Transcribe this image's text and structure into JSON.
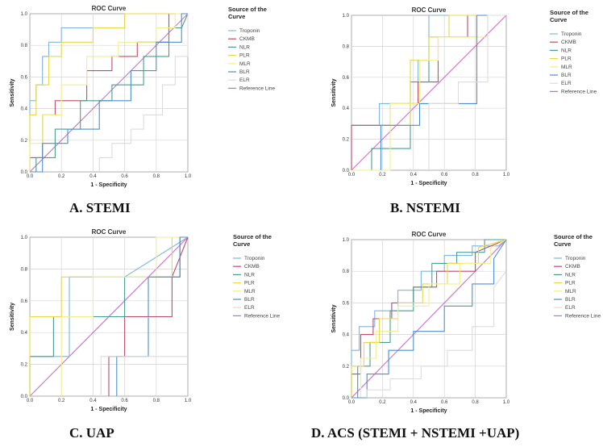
{
  "legend_title_lines": [
    "Source of the",
    "Curve"
  ],
  "chart_data": [
    {
      "type": "line",
      "id": "A",
      "title": "ROC Curve",
      "xlabel": "1 - Specificity",
      "ylabel": "Sensitivity",
      "xlim": [
        0,
        1
      ],
      "ylim": [
        0,
        1
      ],
      "ticks": [
        "0.0",
        "0.2",
        "0.4",
        "0.6",
        "0.8",
        "1.0"
      ],
      "caption": "A. STEMI",
      "series": [
        {
          "name": "Troponin",
          "color": "#7eb6e0",
          "x": [
            0,
            0,
            0.04,
            0.04,
            0.08,
            0.08,
            0.12,
            0.12,
            0.2,
            0.2,
            0.28,
            0.28,
            0.6,
            0.6,
            0.92,
            0.92,
            1
          ],
          "y": [
            0,
            0.45,
            0.45,
            0.55,
            0.55,
            0.73,
            0.73,
            0.82,
            0.82,
            0.91,
            0.91,
            0.91,
            0.91,
            1,
            1,
            1,
            1
          ]
        },
        {
          "name": "CKMB",
          "color": "#c04d66",
          "x": [
            0,
            0,
            0.08,
            0.08,
            0.16,
            0.16,
            0.36,
            0.36,
            0.52,
            0.52,
            0.68,
            0.68,
            0.88,
            0.88,
            1
          ],
          "y": [
            0,
            0.09,
            0.09,
            0.36,
            0.36,
            0.45,
            0.45,
            0.64,
            0.64,
            0.73,
            0.73,
            0.82,
            0.82,
            1,
            1
          ]
        },
        {
          "name": "NLR",
          "color": "#4a9e8e",
          "x": [
            0,
            0.04,
            0.04,
            0.16,
            0.16,
            0.32,
            0.32,
            0.52,
            0.52,
            0.72,
            0.72,
            0.88,
            0.88,
            0.96,
            1
          ],
          "y": [
            0,
            0,
            0.09,
            0.09,
            0.27,
            0.27,
            0.45,
            0.45,
            0.55,
            0.55,
            0.73,
            0.73,
            0.91,
            0.91,
            1
          ]
        },
        {
          "name": "PLR",
          "color": "#e8d84a",
          "x": [
            0,
            0,
            0.04,
            0.04,
            0.12,
            0.12,
            0.2,
            0.2,
            0.4,
            0.4,
            0.6,
            0.6,
            0.92,
            0.92,
            1
          ],
          "y": [
            0,
            0.36,
            0.36,
            0.55,
            0.55,
            0.73,
            0.73,
            0.82,
            0.82,
            0.91,
            0.91,
            1,
            1,
            1,
            1
          ]
        },
        {
          "name": "MLR",
          "color": "#f1ef8a",
          "x": [
            0,
            0,
            0.08,
            0.08,
            0.2,
            0.2,
            0.36,
            0.36,
            0.56,
            0.56,
            0.8,
            0.8,
            0.92,
            0.92,
            1
          ],
          "y": [
            0,
            0.18,
            0.18,
            0.36,
            0.36,
            0.55,
            0.55,
            0.73,
            0.73,
            0.82,
            0.82,
            0.91,
            0.91,
            1,
            1
          ]
        },
        {
          "name": "BLR",
          "color": "#4c8fcf",
          "x": [
            0,
            0.08,
            0.08,
            0.24,
            0.24,
            0.44,
            0.44,
            0.64,
            0.64,
            0.8,
            0.8,
            0.96,
            0.96,
            1
          ],
          "y": [
            0,
            0,
            0.18,
            0.18,
            0.27,
            0.27,
            0.45,
            0.45,
            0.64,
            0.64,
            0.82,
            0.82,
            1,
            1
          ]
        },
        {
          "name": "ELR",
          "color": "#dcdcdc",
          "x": [
            0.44,
            0.44,
            0.52,
            0.52,
            0.64,
            0.64,
            0.72,
            0.72,
            0.84,
            0.84,
            0.92,
            0.92,
            1,
            1
          ],
          "y": [
            0,
            0.09,
            0.09,
            0.18,
            0.18,
            0.27,
            0.27,
            0.36,
            0.36,
            0.55,
            0.55,
            0.73,
            0.73,
            1
          ]
        },
        {
          "name": "Reference Line",
          "color": "#c86ec8",
          "x": [
            0,
            1
          ],
          "y": [
            0,
            1
          ]
        }
      ]
    },
    {
      "type": "line",
      "id": "B",
      "title": "ROC Curve",
      "xlabel": "1 - Specificity",
      "ylabel": "Sensitivity",
      "xlim": [
        0,
        1
      ],
      "ylim": [
        0,
        1
      ],
      "ticks": [
        "0.0",
        "0.2",
        "0.4",
        "0.6",
        "0.8",
        "1.0"
      ],
      "caption": "B. NSTEMI",
      "series": [
        {
          "name": "Troponin",
          "color": "#7eb6e0",
          "x": [
            0,
            0,
            0.18,
            0.18,
            0.43,
            0.43,
            0.5,
            0.5,
            0.75,
            0.75,
            1
          ],
          "y": [
            0,
            0.29,
            0.29,
            0.43,
            0.43,
            0.71,
            0.71,
            1,
            1,
            1,
            1
          ]
        },
        {
          "name": "CKMB",
          "color": "#c04d66",
          "x": [
            0,
            0,
            0.25,
            0.25,
            0.43,
            0.43,
            0.56,
            0.56,
            0.75,
            0.75,
            1
          ],
          "y": [
            0,
            0.29,
            0.29,
            0.43,
            0.43,
            0.57,
            0.57,
            0.86,
            0.86,
            1,
            1
          ]
        },
        {
          "name": "NLR",
          "color": "#4a9e8e",
          "x": [
            0.13,
            0.13,
            0.38,
            0.38,
            0.5,
            0.5,
            0.81,
            0.81,
            1
          ],
          "y": [
            0,
            0.14,
            0.14,
            0.57,
            0.57,
            0.86,
            0.86,
            1,
            1
          ]
        },
        {
          "name": "PLR",
          "color": "#e8d84a",
          "x": [
            0,
            0.19,
            0.19,
            0.38,
            0.38,
            0.5,
            0.5,
            0.63,
            0.63,
            1
          ],
          "y": [
            0,
            0,
            0.29,
            0.29,
            0.71,
            0.71,
            0.86,
            0.86,
            1,
            1
          ]
        },
        {
          "name": "MLR",
          "color": "#f1ef8a",
          "x": [
            0,
            0.25,
            0.25,
            0.44,
            0.44,
            0.56,
            0.56,
            0.88,
            0.88,
            1
          ],
          "y": [
            0,
            0,
            0.43,
            0.43,
            0.71,
            0.71,
            0.86,
            0.86,
            1,
            1
          ]
        },
        {
          "name": "BLR",
          "color": "#4c8fcf",
          "x": [
            0.19,
            0.19,
            0.44,
            0.44,
            0.81,
            0.81,
            1
          ],
          "y": [
            0,
            0.29,
            0.29,
            0.43,
            0.43,
            1,
            1
          ]
        },
        {
          "name": "ELR",
          "color": "#dcdcdc",
          "x": [
            0.5,
            0.5,
            0.69,
            0.69,
            0.88,
            0.88,
            1
          ],
          "y": [
            0,
            0.43,
            0.43,
            0.57,
            0.57,
            1,
            1
          ]
        },
        {
          "name": "Reference Line",
          "color": "#c86ec8",
          "x": [
            0,
            1
          ],
          "y": [
            0,
            1
          ]
        }
      ]
    },
    {
      "type": "line",
      "id": "C",
      "title": "ROC Curve",
      "xlabel": "1 - Specificity",
      "ylabel": "Sensitivity",
      "xlim": [
        0,
        1
      ],
      "ylim": [
        0,
        1
      ],
      "ticks": [
        "0.0",
        "0.2",
        "0.4",
        "0.6",
        "0.8",
        "1.0"
      ],
      "caption": "C. UAP",
      "series": [
        {
          "name": "Troponin",
          "color": "#7eb6e0",
          "x": [
            0,
            0,
            0.25,
            0.25,
            0.6,
            1
          ],
          "y": [
            0,
            0.25,
            0.25,
            0.75,
            0.75,
            1
          ]
        },
        {
          "name": "CKMB",
          "color": "#c04d66",
          "x": [
            0.5,
            0.5,
            0.6,
            0.6,
            0.9,
            0.9,
            1
          ],
          "y": [
            0,
            0.25,
            0.25,
            0.5,
            0.5,
            0.75,
            1
          ]
        },
        {
          "name": "NLR",
          "color": "#4a9e8e",
          "x": [
            0,
            0,
            0.15,
            0.15,
            0.6,
            0.6,
            0.95,
            0.95,
            1
          ],
          "y": [
            0,
            0.25,
            0.25,
            0.5,
            0.5,
            0.75,
            0.75,
            1,
            1
          ]
        },
        {
          "name": "PLR",
          "color": "#e8d84a",
          "x": [
            0,
            0,
            0.05,
            0.05,
            0.2,
            0.2,
            0.9,
            0.9,
            1
          ],
          "y": [
            0,
            0.5,
            0.5,
            0.5,
            0.5,
            0.75,
            0.75,
            1,
            1
          ]
        },
        {
          "name": "MLR",
          "color": "#f1ef8a",
          "x": [
            0.2,
            0.2,
            0.4,
            0.4,
            0.8,
            0.8,
            1
          ],
          "y": [
            0,
            0.5,
            0.5,
            0.75,
            0.75,
            1,
            1
          ]
        },
        {
          "name": "BLR",
          "color": "#4c8fcf",
          "x": [
            0.55,
            0.55,
            0.75,
            0.75,
            0.95,
            0.95,
            1
          ],
          "y": [
            0,
            0.25,
            0.25,
            0.75,
            0.75,
            1,
            1
          ]
        },
        {
          "name": "ELR",
          "color": "#dcdcdc",
          "x": [
            0.45,
            0.45,
            1
          ],
          "y": [
            0,
            0.25,
            0.25
          ]
        },
        {
          "name": "Reference Line",
          "color": "#c86ec8",
          "x": [
            0,
            1
          ],
          "y": [
            0,
            1
          ]
        }
      ]
    },
    {
      "type": "line",
      "id": "D",
      "title": "ROC Curve",
      "xlabel": "1 - Specificity",
      "ylabel": "Sensitivity",
      "xlim": [
        0,
        1
      ],
      "ylim": [
        0,
        1
      ],
      "ticks": [
        "0.0",
        "0.2",
        "0.4",
        "0.6",
        "0.8",
        "1.0"
      ],
      "caption": "D. ACS (STEMI + NSTEMI +UAP)",
      "series": [
        {
          "name": "Troponin",
          "color": "#7eb6e0",
          "x": [
            0,
            0,
            0.05,
            0.05,
            0.15,
            0.15,
            0.3,
            0.3,
            0.45,
            0.45,
            0.6,
            0.6,
            0.78,
            0.78,
            0.95,
            1
          ],
          "y": [
            0,
            0.3,
            0.3,
            0.45,
            0.45,
            0.55,
            0.55,
            0.68,
            0.68,
            0.8,
            0.8,
            0.9,
            0.9,
            0.96,
            0.96,
            1
          ]
        },
        {
          "name": "CKMB",
          "color": "#c04d66",
          "x": [
            0,
            0,
            0.06,
            0.06,
            0.14,
            0.14,
            0.26,
            0.26,
            0.4,
            0.4,
            0.55,
            0.55,
            0.8,
            0.8,
            1
          ],
          "y": [
            0,
            0.15,
            0.15,
            0.4,
            0.4,
            0.5,
            0.5,
            0.6,
            0.6,
            0.7,
            0.7,
            0.8,
            0.8,
            0.92,
            1
          ]
        },
        {
          "name": "NLR",
          "color": "#4a9e8e",
          "x": [
            0,
            0.04,
            0.04,
            0.12,
            0.12,
            0.25,
            0.25,
            0.4,
            0.4,
            0.52,
            0.52,
            0.68,
            0.68,
            0.86,
            0.86,
            1
          ],
          "y": [
            0,
            0,
            0.2,
            0.2,
            0.35,
            0.35,
            0.55,
            0.55,
            0.7,
            0.7,
            0.85,
            0.85,
            0.92,
            0.92,
            1,
            1
          ]
        },
        {
          "name": "PLR",
          "color": "#e8d84a",
          "x": [
            0,
            0,
            0.08,
            0.08,
            0.18,
            0.18,
            0.3,
            0.3,
            0.46,
            0.46,
            0.62,
            0.62,
            0.82,
            0.82,
            1
          ],
          "y": [
            0,
            0.2,
            0.2,
            0.35,
            0.35,
            0.5,
            0.5,
            0.6,
            0.6,
            0.72,
            0.72,
            0.85,
            0.85,
            0.95,
            1
          ]
        },
        {
          "name": "MLR",
          "color": "#f1ef8a",
          "x": [
            0,
            0.06,
            0.06,
            0.16,
            0.16,
            0.3,
            0.3,
            0.5,
            0.5,
            0.7,
            0.7,
            0.9,
            0.9,
            1
          ],
          "y": [
            0,
            0,
            0.25,
            0.25,
            0.42,
            0.42,
            0.58,
            0.58,
            0.72,
            0.72,
            0.85,
            0.85,
            0.95,
            1
          ]
        },
        {
          "name": "BLR",
          "color": "#4c8fcf",
          "x": [
            0,
            0.1,
            0.1,
            0.24,
            0.24,
            0.4,
            0.4,
            0.6,
            0.6,
            0.78,
            0.78,
            0.92,
            0.92,
            1
          ],
          "y": [
            0,
            0,
            0.15,
            0.15,
            0.3,
            0.3,
            0.42,
            0.42,
            0.58,
            0.58,
            0.72,
            0.72,
            0.88,
            1
          ]
        },
        {
          "name": "ELR",
          "color": "#dcdcdc",
          "x": [
            0.1,
            0.1,
            0.25,
            0.25,
            0.45,
            0.45,
            0.62,
            0.62,
            0.78,
            0.78,
            0.92,
            0.92,
            1
          ],
          "y": [
            0,
            0.05,
            0.05,
            0.12,
            0.12,
            0.2,
            0.2,
            0.3,
            0.3,
            0.45,
            0.45,
            0.7,
            0.8
          ]
        },
        {
          "name": "Reference Line",
          "color": "#c86ec8",
          "x": [
            0,
            1
          ],
          "y": [
            0,
            1
          ]
        }
      ]
    }
  ]
}
